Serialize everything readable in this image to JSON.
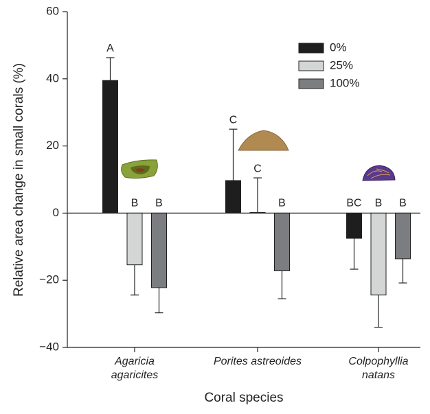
{
  "chart_data": {
    "type": "bar",
    "ylabel": "Relative area change in small corals (%)",
    "xlabel": "Coral species",
    "categories": [
      "Agaricia agaricites",
      "Porites astreoides",
      "Colpophyllia natans"
    ],
    "series": [
      {
        "name": "0%",
        "color": "#1e1e1e",
        "values": [
          39.5,
          9.7,
          -7.5
        ],
        "errors": [
          6.8,
          15.3,
          9.2
        ],
        "letters": [
          "A",
          "C",
          "BC"
        ]
      },
      {
        "name": "25%",
        "color": "#d4d6d6",
        "values": [
          -15.4,
          0.2,
          -24.4
        ],
        "errors": [
          9.0,
          10.3,
          9.6
        ],
        "letters": [
          "B",
          "C",
          "B"
        ]
      },
      {
        "name": "100%",
        "color": "#7c7d80",
        "values": [
          -22.2,
          -17.2,
          -13.6
        ],
        "errors": [
          7.5,
          8.3,
          7.2
        ],
        "letters": [
          "B",
          "B",
          "B"
        ]
      }
    ],
    "ylim": [
      -40,
      60
    ],
    "yticks": [
      {
        "value": -40,
        "label": "−40"
      },
      {
        "value": -20,
        "label": "−20"
      },
      0,
      20,
      40,
      60
    ],
    "legend": "upper right"
  }
}
